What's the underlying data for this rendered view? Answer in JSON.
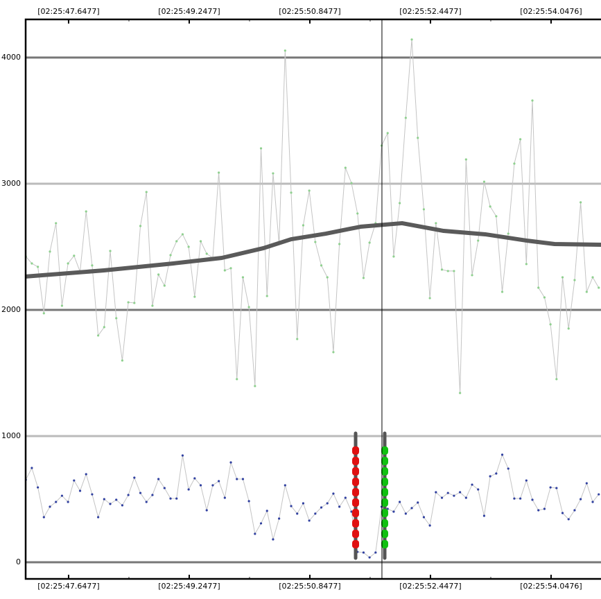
{
  "chart_data": {
    "type": "line",
    "xlim": [
      47.078,
      54.71
    ],
    "ylim": [
      -132,
      4302
    ],
    "xticks": [
      {
        "value": 47.6477,
        "label": "[02:25:47.6477]"
      },
      {
        "value": 49.2477,
        "label": "[02:25:49.2477]"
      },
      {
        "value": 50.8477,
        "label": "[02:25:50.8477]"
      },
      {
        "value": 52.4477,
        "label": "[02:25:52.4477]"
      },
      {
        "value": 54.0476,
        "label": "[02:25:54.0476]"
      }
    ],
    "xminor": [
      48.4477,
      50.0477,
      51.6477,
      53.2477
    ],
    "yticks": [
      0,
      1000,
      2000,
      3000,
      4000
    ],
    "grid": true,
    "grid_colors": [
      "#777777",
      "#bbbbbb"
    ],
    "cursor_x": 51.804,
    "x": [
      47.08,
      47.16,
      47.24,
      47.32,
      47.4,
      47.48,
      47.56,
      47.64,
      47.72,
      47.8,
      47.88,
      47.96,
      48.04,
      48.12,
      48.2,
      48.28,
      48.36,
      48.44,
      48.52,
      48.6,
      48.68,
      48.76,
      48.84,
      48.92,
      49.0,
      49.08,
      49.16,
      49.24,
      49.32,
      49.4,
      49.48,
      49.56,
      49.64,
      49.72,
      49.8,
      49.88,
      49.96,
      50.04,
      50.12,
      50.2,
      50.28,
      50.36,
      50.44,
      50.52,
      50.6,
      50.68,
      50.76,
      50.84,
      50.92,
      51.0,
      51.08,
      51.16,
      51.24,
      51.32,
      51.4,
      51.48,
      51.56,
      51.64,
      51.72,
      51.8,
      51.88,
      51.96,
      52.04,
      52.12,
      52.2,
      52.28,
      52.36,
      52.44,
      52.52,
      52.6,
      52.68,
      52.76,
      52.84,
      52.92,
      53.0,
      53.08,
      53.16,
      53.24,
      53.32,
      53.4,
      53.48,
      53.56,
      53.64,
      53.72,
      53.8,
      53.88,
      53.96,
      54.04,
      54.12,
      54.2,
      54.28,
      54.36,
      54.44,
      54.52,
      54.6,
      54.68
    ],
    "series": [
      {
        "color": "#8fd08f",
        "line_color": "#c4c4c4",
        "line_width": 1,
        "markers": true,
        "values": [
          2423,
          2368,
          2341,
          1973,
          2462,
          2687,
          2033,
          2368,
          2429,
          2302,
          2780,
          2352,
          1797,
          1863,
          2467,
          1934,
          1599,
          2060,
          2055,
          2665,
          2934,
          2033,
          2280,
          2192,
          2434,
          2544,
          2599,
          2500,
          2104,
          2544,
          2445,
          2412,
          3088,
          2313,
          2330,
          1451,
          2258,
          2022,
          1396,
          3280,
          2110,
          3082,
          2522,
          4055,
          2929,
          1769,
          2670,
          2945,
          2538,
          2352,
          2258,
          1665,
          2522,
          3126,
          3005,
          2764,
          2253,
          2533,
          2687,
          3302,
          3401,
          2423,
          2846,
          3522,
          4143,
          3363,
          2797,
          2093,
          2687,
          2319,
          2308,
          2308,
          1341,
          3192,
          2275,
          2549,
          3016,
          2819,
          2742,
          2143,
          2604,
          3159,
          3352,
          2363,
          3659,
          2176,
          2099,
          1885,
          1451,
          2258,
          1852,
          2236,
          2852,
          2143,
          2258,
          2176
        ]
      },
      {
        "color": "#3040a0",
        "line_color": "#c4c4c4",
        "line_width": 1,
        "markers": true,
        "values": [
          654,
          747,
          593,
          357,
          440,
          478,
          527,
          478,
          648,
          566,
          698,
          538,
          357,
          500,
          462,
          495,
          451,
          533,
          670,
          549,
          478,
          533,
          659,
          588,
          505,
          505,
          846,
          577,
          665,
          610,
          412,
          610,
          643,
          511,
          791,
          659,
          659,
          484,
          225,
          308,
          407,
          181,
          346,
          610,
          445,
          385,
          467,
          330,
          385,
          434,
          467,
          544,
          440,
          511,
          401,
          82,
          77,
          38,
          77,
          440,
          423,
          401,
          478,
          385,
          429,
          473,
          357,
          291,
          555,
          511,
          549,
          527,
          555,
          511,
          615,
          577,
          368,
          681,
          703,
          852,
          742,
          505,
          505,
          648,
          495,
          412,
          423,
          593,
          588,
          390,
          341,
          412,
          500,
          626,
          478,
          538
        ]
      },
      {
        "color": "#5a5a5a",
        "line_color": "#5a5a5a",
        "line_width": 6,
        "markers": false,
        "x": [
          47.078,
          48.117,
          49.036,
          49.68,
          50.232,
          50.599,
          51.059,
          51.519,
          52.071,
          52.622,
          53.174,
          53.726,
          54.094,
          54.71
        ],
        "values": [
          2264,
          2313,
          2368,
          2412,
          2489,
          2560,
          2604,
          2659,
          2687,
          2626,
          2599,
          2549,
          2522,
          2516
        ]
      }
    ],
    "bands": [
      {
        "x": 51.455,
        "color": "#e01010",
        "range": [
          33,
          1022
        ],
        "values": [
          885,
          802,
          720,
          637,
          555,
          473,
          390,
          308,
          225,
          143
        ]
      },
      {
        "x": 51.841,
        "color": "#10c010",
        "range": [
          33,
          1022
        ],
        "values": [
          885,
          802,
          720,
          637,
          555,
          473,
          390,
          308,
          225,
          143
        ]
      }
    ]
  }
}
